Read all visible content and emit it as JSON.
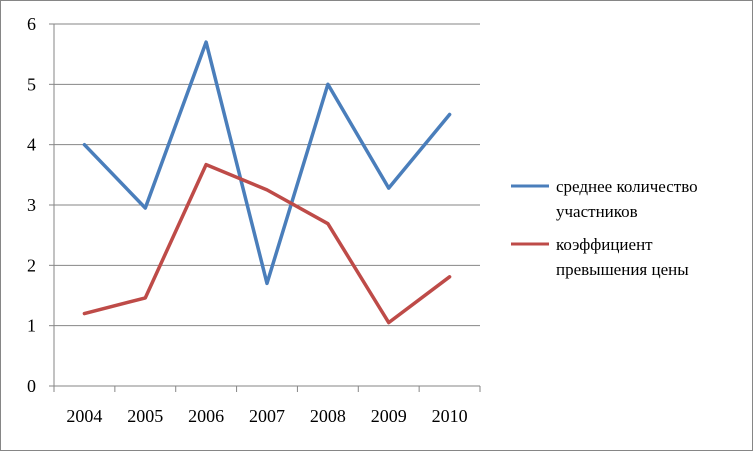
{
  "chart_data": {
    "type": "line",
    "title": "",
    "xlabel": "",
    "ylabel": "",
    "x": [
      "2004",
      "2005",
      "2006",
      "2007",
      "2008",
      "2009",
      "2010"
    ],
    "y_ticks": [
      "0",
      "1",
      "2",
      "3",
      "4",
      "5",
      "6"
    ],
    "ylim": [
      0,
      6
    ],
    "grid": true,
    "legend_position": "right",
    "series": [
      {
        "name_lines": [
          "среднее количество",
          "участников"
        ],
        "color": "#4a7ebb",
        "values": [
          4.0,
          2.95,
          5.7,
          1.7,
          5.0,
          3.28,
          4.5
        ]
      },
      {
        "name_lines": [
          "коэффициент",
          "превышения цены"
        ],
        "color": "#be4b48",
        "values": [
          1.2,
          1.46,
          3.67,
          3.25,
          2.69,
          1.05,
          1.81
        ]
      }
    ]
  }
}
